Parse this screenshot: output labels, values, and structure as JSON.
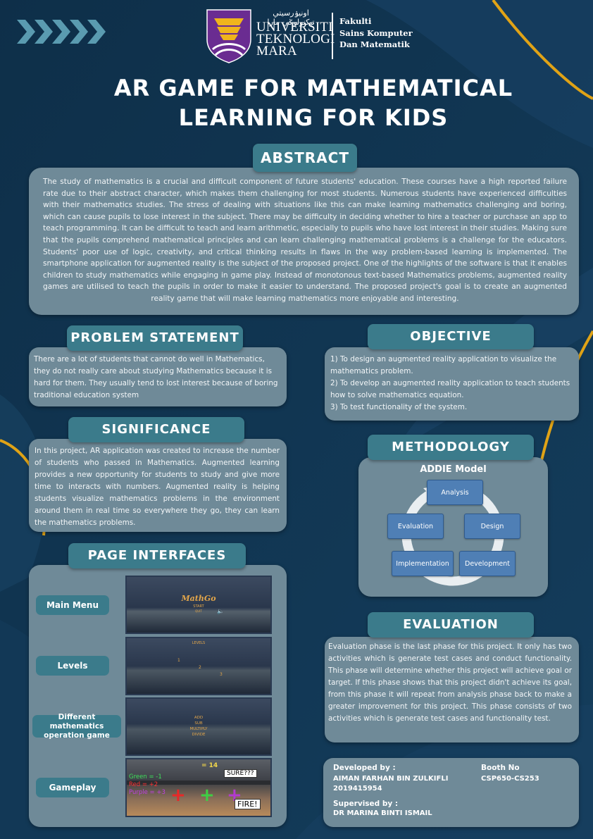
{
  "header": {
    "university_line1": "UNIVERSITI",
    "university_line2": "TEKNOLOGI",
    "university_line3": "MARA",
    "arabic_script": "اونيۏرسيتي تيكنولوݢي مارا",
    "faculty_line1": "Fakulti",
    "faculty_line2": "Sains Komputer",
    "faculty_line3": "Dan Matematik",
    "title_line1": "AR GAME FOR MATHEMATICAL",
    "title_line2": "LEARNING FOR KIDS"
  },
  "abstract": {
    "heading": "ABSTRACT",
    "text": "The study of mathematics is a crucial and difficult component of future students' education. These courses have a high reported failure rate due to their abstract character, which makes them challenging for most students. Numerous students have experienced difficulties with their mathematics studies. The stress of dealing with     situations like this can make learning mathematics challenging and boring, which can cause pupils to lose interest in the subject. There may be difficulty in deciding whether to hire a teacher or purchase an app to teach programming. It can be difficult to teach and learn arithmetic, especially to pupils who have lost interest in their studies. Making sure that the pupils comprehend mathematical principles and can learn challenging mathematical problems is a challenge for the educators. Students' poor use of logic, creativity, and critical thinking results in flaws in the way problem-based learning is implemented. The smartphone application for augmented reality is the subject of the proposed project. One of the highlights of the software is that it enables children to study mathematics while engaging in game play. Instead of monotonous text-based Mathematics problems, augmented reality games are utilised to teach the pupils in order to make it easier to understand. The proposed project's goal is to create an augmented reality game that will make learning mathematics more enjoyable and interesting."
  },
  "problem": {
    "heading": "PROBLEM STATEMENT",
    "text": "There are a lot of students that cannot do well in Mathematics, they do not really care about     studying Mathematics because it is hard for them. They usually tend to lost interest because of boring traditional education system"
  },
  "objective": {
    "heading": "OBJECTIVE",
    "items": [
      "1) To design an augmented reality application to visualize the mathematics problem.",
      "2) To develop an augmented reality application to teach students how to solve mathematics equation.",
      "3) To test functionality of the system."
    ]
  },
  "significance": {
    "heading": "SIGNIFICANCE",
    "text": "In this project, AR application was created to increase the number of students who passed in Mathematics. Augmented learning provides a new opportunity for students to study and give more time to interacts with numbers. Augmented reality is helping students visualize mathematics problems in the environment around them in real time so everywhere they go, they can learn the mathematics problems."
  },
  "methodology": {
    "heading": "METHODOLOGY",
    "model_title": "ADDIE Model",
    "steps": {
      "analysis": "Analysis",
      "design": "Design",
      "development": "Development",
      "implementation": "Implementation",
      "evaluation": "Evaluation"
    }
  },
  "interfaces": {
    "heading": "PAGE INTERFACES",
    "labels": [
      "Main Menu",
      "Levels",
      "Different mathematics operation game",
      "Gameplay"
    ],
    "main_menu": {
      "title": "MathGo",
      "start": "START",
      "quit": "QUIT"
    },
    "levels": {
      "header": "LEVELS",
      "l1": "1",
      "l2": "2",
      "l3": "3"
    },
    "operations": [
      "ADD",
      "SUB",
      "MULTIPLY",
      "DIVIDE"
    ],
    "gameplay": {
      "equation": "= 14",
      "green": "Green = -1",
      "red": "Red = +2",
      "purple": "Purple = +3",
      "sure": "SURE???",
      "fire": "FIRE!"
    }
  },
  "evaluation": {
    "heading": "EVALUATION",
    "text": "Evaluation phase is the last phase for this project. It only has two activities which is generate test cases and conduct functionality. This phase will determine whether this project will achieve goal or target. If this phase shows that this     project didn't achieve its goal, from this phase it will repeat from analysis phase back to make a greater improvement for this project. This phase consists of two activities which is generate test cases and functionality test."
  },
  "credits": {
    "developed_label": "Developed by :",
    "developer_name": "AIMAN FARHAN BIN ZULKIFLI",
    "developer_id": "2019415954",
    "supervised_label": "Supervised by :",
    "supervisor_name": "DR MARINA BINTI ISMAIL",
    "booth_label": "Booth No",
    "booth_value": "CSP650-CS253"
  },
  "colors": {
    "background": "#0f3553",
    "panel": "#6f8a98",
    "pill": "#3b7b8b",
    "gold": "#e0a316",
    "node": "#4f7fb5"
  }
}
